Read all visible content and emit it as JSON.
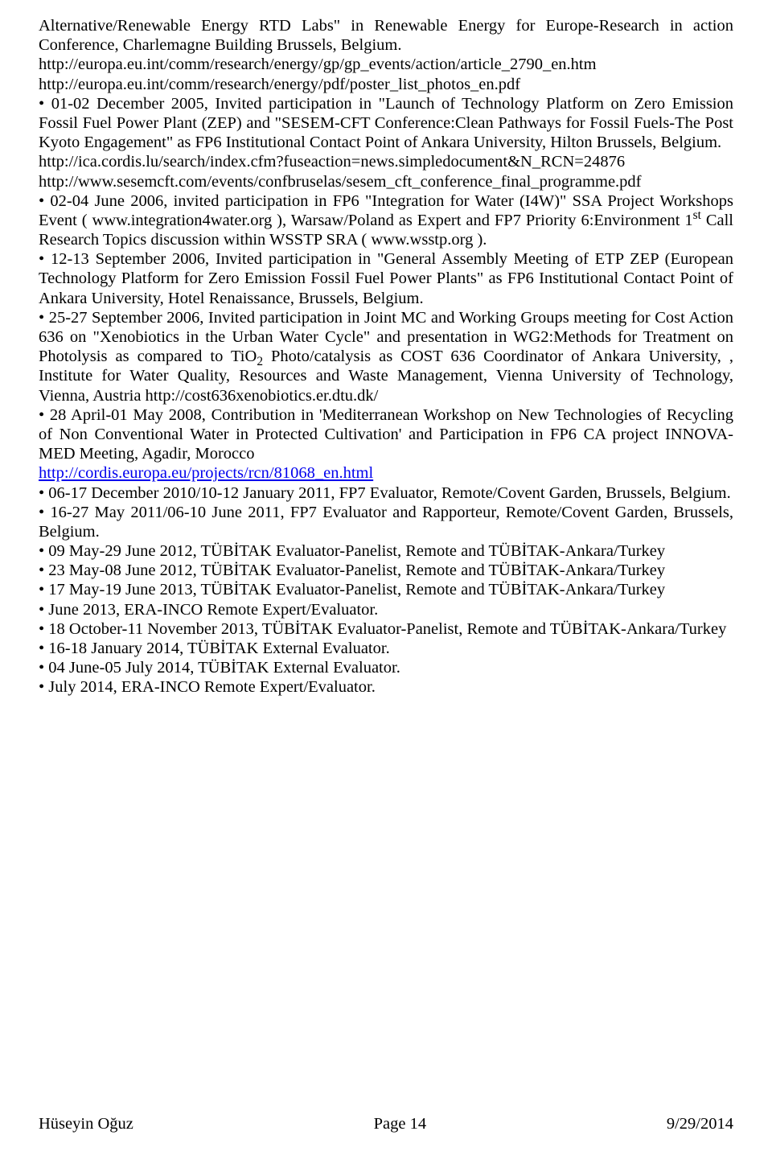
{
  "para1": {
    "line1": "Alternative/Renewable Energy RTD Labs\" in Renewable Energy for Europe-Research in action Conference, Charlemagne Building Brussels, Belgium.",
    "url1": "http://europa.eu.int/comm/research/energy/gp/gp_events/action/article_2790_en.htm",
    "url2": "http://europa.eu.int/comm/research/energy/pdf/poster_list_photos_en.pdf"
  },
  "bullet2": "• 01-02 December 2005, Invited participation in \"Launch of Technology Platform on Zero Emission Fossil Fuel Power Plant (ZEP) and \"SESEM-CFT Conference:Clean Pathways for Fossil Fuels-The Post Kyoto Engagement\" as FP6 Institutional Contact Point of Ankara University, Hilton Brussels, Belgium.",
  "bullet2_url1": "http://ica.cordis.lu/search/index.cfm?fuseaction=news.simpledocument&N_RCN=24876",
  "bullet2_url2": "http://www.sesemcft.com/events/confbruselas/sesem_cft_conference_final_programme.pdf",
  "bullet3_a": "• 02-04 June 2006, invited participation in FP6 \"Integration for Water (I4W)\" SSA Project Workshops Event ( www.integration4water.org ), Warsaw/Poland as Expert and FP7 Priority 6:Environment 1",
  "bullet3_b": " Call Research Topics discussion within WSSTP SRA ( www.wsstp.org ).",
  "bullet4": "• 12-13 September 2006, Invited participation in \"General Assembly Meeting of ETP ZEP (European Technology Platform for Zero Emission Fossil Fuel Power Plants\" as FP6 Institutional Contact Point of Ankara University, Hotel Renaissance, Brussels, Belgium.",
  "bullet5_a": "• 25-27 September 2006, Invited participation in Joint MC and Working Groups meeting for Cost Action 636 on \"Xenobiotics in the Urban Water Cycle\" and presentation in WG2:Methods for Treatment on Photolysis as compared to TiO",
  "bullet5_b": " Photo/catalysis as COST 636 Coordinator of Ankara University, , Institute for Water Quality, Resources and Waste Management, Vienna University of Technology, Vienna, Austria http://cost636xenobiotics.er.dtu.dk/",
  "bullet6": "• 28 April-01 May 2008, Contribution in 'Mediterranean Workshop on New Technologies of Recycling of Non Conventional Water in Protected Cultivation' and Participation in FP6 CA project INNOVA-MED Meeting, Agadir, Morocco",
  "bullet6_link": "http://cordis.europa.eu/projects/rcn/81068_en.html",
  "bullet7": "• 06-17 December 2010/10-12 January 2011, FP7 Evaluator, Remote/Covent Garden, Brussels, Belgium.",
  "bullet8": "• 16-27 May 2011/06-10 June 2011, FP7 Evaluator and Rapporteur, Remote/Covent Garden, Brussels, Belgium.",
  "bullet9": "• 09 May-29 June 2012, TÜBİTAK Evaluator-Panelist, Remote and TÜBİTAK-Ankara/Turkey",
  "bullet10": "• 23 May-08 June 2012, TÜBİTAK Evaluator-Panelist, Remote and TÜBİTAK-Ankara/Turkey",
  "bullet11": "• 17 May-19 June 2013, TÜBİTAK Evaluator-Panelist, Remote and TÜBİTAK-Ankara/Turkey",
  "bullet12": "• June 2013, ERA-INCO Remote Expert/Evaluator.",
  "bullet13": "• 18 October-11 November 2013, TÜBİTAK Evaluator-Panelist, Remote and TÜBİTAK-Ankara/Turkey",
  "bullet14": "• 16-18 January 2014, TÜBİTAK External Evaluator.",
  "bullet15": "• 04 June-05 July 2014, TÜBİTAK External Evaluator.",
  "bullet16": "• July 2014, ERA-INCO Remote Expert/Evaluator.",
  "footer": {
    "left": "Hüseyin Oğuz",
    "center": "Page 14",
    "right": "9/29/2014"
  },
  "sup_st": "st",
  "sub_2": "2"
}
